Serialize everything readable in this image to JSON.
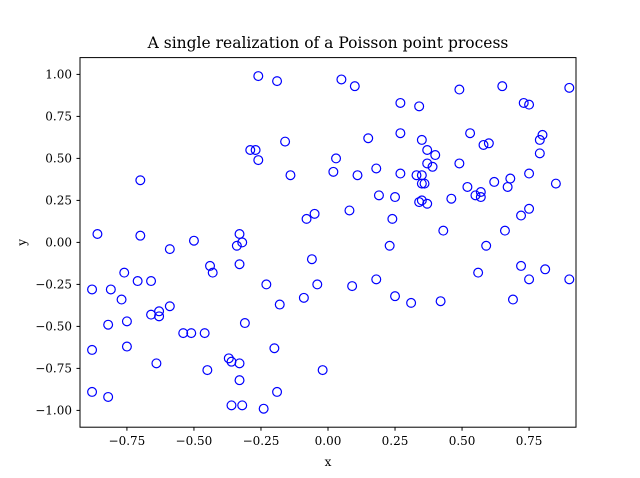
{
  "chart_data": {
    "type": "scatter",
    "title": "A single realization of a Poisson point process",
    "xlabel": "x",
    "ylabel": "y",
    "xlim": [
      -0.925,
      0.925
    ],
    "ylim": [
      -1.1,
      1.1
    ],
    "xticks": [
      -0.75,
      -0.5,
      -0.25,
      0.0,
      0.25,
      0.5,
      0.75
    ],
    "xtick_labels": [
      "−0.75",
      "−0.50",
      "−0.25",
      "0.00",
      "0.25",
      "0.50",
      "0.75"
    ],
    "yticks": [
      -1.0,
      -0.75,
      -0.5,
      -0.25,
      0.0,
      0.25,
      0.5,
      0.75,
      1.0
    ],
    "ytick_labels": [
      "−1.00",
      "−0.75",
      "−0.50",
      "−0.25",
      "0.00",
      "0.25",
      "0.50",
      "0.75",
      "1.00"
    ],
    "grid": false,
    "marker": "hollow-circle",
    "marker_color": "#0000ff",
    "points": [
      [
        -0.26,
        0.99
      ],
      [
        -0.19,
        0.96
      ],
      [
        0.05,
        0.97
      ],
      [
        0.1,
        0.93
      ],
      [
        0.27,
        0.83
      ],
      [
        0.34,
        0.81
      ],
      [
        0.49,
        0.91
      ],
      [
        0.65,
        0.93
      ],
      [
        0.73,
        0.83
      ],
      [
        0.75,
        0.82
      ],
      [
        0.9,
        0.92
      ],
      [
        0.15,
        0.62
      ],
      [
        0.27,
        0.65
      ],
      [
        0.35,
        0.61
      ],
      [
        0.37,
        0.55
      ],
      [
        0.4,
        0.52
      ],
      [
        0.53,
        0.65
      ],
      [
        0.58,
        0.58
      ],
      [
        0.6,
        0.59
      ],
      [
        0.79,
        0.61
      ],
      [
        0.8,
        0.64
      ],
      [
        0.79,
        0.53
      ],
      [
        -0.29,
        0.55
      ],
      [
        -0.27,
        0.55
      ],
      [
        -0.26,
        0.49
      ],
      [
        -0.16,
        0.6
      ],
      [
        0.03,
        0.5
      ],
      [
        0.02,
        0.42
      ],
      [
        0.11,
        0.4
      ],
      [
        0.18,
        0.44
      ],
      [
        0.27,
        0.41
      ],
      [
        0.33,
        0.4
      ],
      [
        0.35,
        0.4
      ],
      [
        0.37,
        0.47
      ],
      [
        0.39,
        0.45
      ],
      [
        0.49,
        0.47
      ],
      [
        0.35,
        0.35
      ],
      [
        0.36,
        0.35
      ],
      [
        0.19,
        0.28
      ],
      [
        0.25,
        0.27
      ],
      [
        0.34,
        0.24
      ],
      [
        0.35,
        0.25
      ],
      [
        0.37,
        0.23
      ],
      [
        0.46,
        0.26
      ],
      [
        0.52,
        0.33
      ],
      [
        0.55,
        0.28
      ],
      [
        0.57,
        0.3
      ],
      [
        0.57,
        0.27
      ],
      [
        0.62,
        0.36
      ],
      [
        0.67,
        0.33
      ],
      [
        0.68,
        0.38
      ],
      [
        0.75,
        0.41
      ],
      [
        0.85,
        0.35
      ],
      [
        0.72,
        0.16
      ],
      [
        0.75,
        0.2
      ],
      [
        -0.7,
        0.37
      ],
      [
        -0.14,
        0.4
      ],
      [
        -0.08,
        0.14
      ],
      [
        -0.05,
        0.17
      ],
      [
        0.08,
        0.19
      ],
      [
        0.24,
        0.14
      ],
      [
        0.43,
        0.07
      ],
      [
        0.66,
        0.07
      ],
      [
        -0.86,
        0.05
      ],
      [
        -0.7,
        0.04
      ],
      [
        -0.59,
        -0.04
      ],
      [
        -0.5,
        0.01
      ],
      [
        -0.33,
        0.05
      ],
      [
        -0.34,
        -0.02
      ],
      [
        -0.32,
        0.0
      ],
      [
        0.23,
        -0.02
      ],
      [
        0.59,
        -0.02
      ],
      [
        -0.76,
        -0.18
      ],
      [
        -0.71,
        -0.23
      ],
      [
        -0.66,
        -0.23
      ],
      [
        -0.44,
        -0.14
      ],
      [
        -0.43,
        -0.18
      ],
      [
        -0.33,
        -0.13
      ],
      [
        -0.06,
        -0.1
      ],
      [
        0.56,
        -0.18
      ],
      [
        0.72,
        -0.14
      ],
      [
        0.81,
        -0.16
      ],
      [
        -0.88,
        -0.28
      ],
      [
        -0.81,
        -0.28
      ],
      [
        -0.77,
        -0.34
      ],
      [
        -0.23,
        -0.25
      ],
      [
        -0.18,
        -0.37
      ],
      [
        -0.04,
        -0.25
      ],
      [
        0.09,
        -0.26
      ],
      [
        0.18,
        -0.22
      ],
      [
        0.25,
        -0.32
      ],
      [
        0.31,
        -0.36
      ],
      [
        0.42,
        -0.35
      ],
      [
        0.69,
        -0.34
      ],
      [
        0.75,
        -0.22
      ],
      [
        0.9,
        -0.22
      ],
      [
        -0.82,
        -0.49
      ],
      [
        -0.75,
        -0.47
      ],
      [
        -0.66,
        -0.43
      ],
      [
        -0.63,
        -0.41
      ],
      [
        -0.63,
        -0.44
      ],
      [
        -0.59,
        -0.38
      ],
      [
        -0.54,
        -0.54
      ],
      [
        -0.51,
        -0.54
      ],
      [
        -0.46,
        -0.54
      ],
      [
        -0.31,
        -0.48
      ],
      [
        -0.09,
        -0.33
      ],
      [
        -0.88,
        -0.64
      ],
      [
        -0.75,
        -0.62
      ],
      [
        -0.64,
        -0.72
      ],
      [
        -0.45,
        -0.76
      ],
      [
        -0.37,
        -0.69
      ],
      [
        -0.36,
        -0.71
      ],
      [
        -0.33,
        -0.72
      ],
      [
        -0.33,
        -0.82
      ],
      [
        -0.2,
        -0.63
      ],
      [
        -0.02,
        -0.76
      ],
      [
        -0.88,
        -0.89
      ],
      [
        -0.82,
        -0.92
      ],
      [
        -0.36,
        -0.97
      ],
      [
        -0.32,
        -0.97
      ],
      [
        -0.24,
        -0.99
      ],
      [
        -0.19,
        -0.89
      ]
    ]
  }
}
